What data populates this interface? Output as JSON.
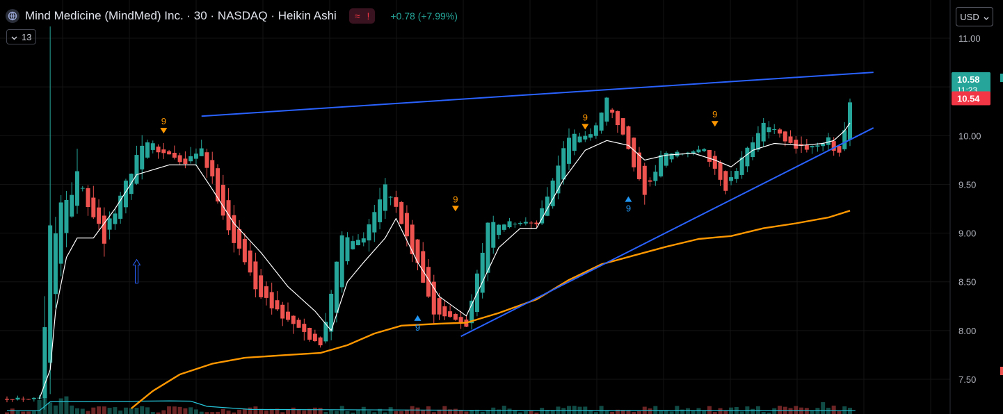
{
  "header": {
    "title": "Mind Medicine (MindMed) Inc. · 30 · NASDAQ · Heikin Ashi",
    "badge_wave": "≈",
    "badge_alert": "!",
    "change": "+0.78 (+7.99%)",
    "logo_icon": "globe-logo-icon"
  },
  "indicator_toggle": {
    "icon": "chevron-down-icon",
    "label": "13"
  },
  "currency": {
    "label": "USD",
    "icon": "chevron-down-icon"
  },
  "price_labels": {
    "last_price": "10.58",
    "countdown": "11:23",
    "ask_price": "10.54",
    "last_color": "#26a69a",
    "ask_color": "#f23645"
  },
  "chart_data": {
    "type": "candlestick",
    "style": "Heikin Ashi",
    "interval": "30",
    "y_axis": {
      "ticks": [
        "11.00",
        "10.50",
        "10.00",
        "9.50",
        "9.00",
        "8.50",
        "8.00",
        "7.50"
      ],
      "range": [
        7.28,
        11.2
      ],
      "position": "right"
    },
    "grid": true,
    "legend": "none",
    "colors": {
      "up": "#26a69a",
      "down": "#ef5350",
      "ma_fast": "#ffffff",
      "ma_slow": "#ff9800",
      "trendline": "#2962ff",
      "volume_ma": "#26c6da"
    },
    "segments": [
      {
        "from": 0,
        "to": 6,
        "start": 7.3,
        "end": 7.3,
        "noise": 0.04
      },
      {
        "from": 6,
        "to": 8,
        "start": 7.3,
        "end": 8.95,
        "noise": 0.5
      },
      {
        "from": 8,
        "to": 13,
        "start": 8.95,
        "end": 9.6,
        "noise": 0.35
      },
      {
        "from": 13,
        "to": 18,
        "start": 9.6,
        "end": 8.95,
        "noise": 0.3
      },
      {
        "from": 18,
        "to": 25,
        "start": 8.95,
        "end": 9.95,
        "noise": 0.2
      },
      {
        "from": 25,
        "to": 33,
        "start": 9.95,
        "end": 9.7,
        "noise": 0.12
      },
      {
        "from": 33,
        "to": 36,
        "start": 9.7,
        "end": 9.85,
        "noise": 0.15
      },
      {
        "from": 36,
        "to": 41,
        "start": 9.85,
        "end": 9.05,
        "noise": 0.2
      },
      {
        "from": 41,
        "to": 47,
        "start": 9.05,
        "end": 8.35,
        "noise": 0.15
      },
      {
        "from": 47,
        "to": 55,
        "start": 8.35,
        "end": 7.95,
        "noise": 0.15
      },
      {
        "from": 55,
        "to": 58,
        "start": 7.95,
        "end": 7.85,
        "noise": 0.08
      },
      {
        "from": 58,
        "to": 62,
        "start": 7.85,
        "end": 8.95,
        "noise": 0.15
      },
      {
        "from": 62,
        "to": 66,
        "start": 8.95,
        "end": 8.95,
        "noise": 0.12
      },
      {
        "from": 66,
        "to": 70,
        "start": 8.95,
        "end": 9.55,
        "noise": 0.2
      },
      {
        "from": 70,
        "to": 79,
        "start": 9.55,
        "end": 8.2,
        "noise": 0.15
      },
      {
        "from": 79,
        "to": 85,
        "start": 8.2,
        "end": 8.05,
        "noise": 0.1
      },
      {
        "from": 85,
        "to": 89,
        "start": 8.05,
        "end": 9.1,
        "noise": 0.15
      },
      {
        "from": 89,
        "to": 98,
        "start": 9.1,
        "end": 9.1,
        "noise": 0.1
      },
      {
        "from": 98,
        "to": 104,
        "start": 9.1,
        "end": 10.0,
        "noise": 0.15
      },
      {
        "from": 104,
        "to": 108,
        "start": 10.0,
        "end": 10.0,
        "noise": 0.1
      },
      {
        "from": 108,
        "to": 111,
        "start": 10.0,
        "end": 10.38,
        "noise": 0.12
      },
      {
        "from": 111,
        "to": 115,
        "start": 10.38,
        "end": 9.85,
        "noise": 0.15
      },
      {
        "from": 115,
        "to": 118,
        "start": 9.85,
        "end": 9.35,
        "noise": 0.15
      },
      {
        "from": 118,
        "to": 121,
        "start": 9.35,
        "end": 9.8,
        "noise": 0.1
      },
      {
        "from": 121,
        "to": 129,
        "start": 9.8,
        "end": 9.85,
        "noise": 0.06
      },
      {
        "from": 129,
        "to": 133,
        "start": 9.85,
        "end": 9.45,
        "noise": 0.1
      },
      {
        "from": 133,
        "to": 137,
        "start": 9.45,
        "end": 9.85,
        "noise": 0.1
      },
      {
        "from": 137,
        "to": 140,
        "start": 9.85,
        "end": 10.15,
        "noise": 0.12
      },
      {
        "from": 140,
        "to": 146,
        "start": 10.15,
        "end": 9.85,
        "noise": 0.1
      },
      {
        "from": 146,
        "to": 152,
        "start": 9.85,
        "end": 9.95,
        "noise": 0.12
      },
      {
        "from": 152,
        "to": 154,
        "start": 9.95,
        "end": 9.8,
        "noise": 0.1
      },
      {
        "from": 154,
        "to": 157,
        "start": 9.8,
        "end": 10.58,
        "noise": 0.12
      }
    ],
    "candle_count": 157,
    "ma_fast": [
      {
        "i": 6,
        "v": 7.3
      },
      {
        "i": 8,
        "v": 7.6
      },
      {
        "i": 9,
        "v": 8.2
      },
      {
        "i": 11,
        "v": 8.75
      },
      {
        "i": 13,
        "v": 8.95
      },
      {
        "i": 16,
        "v": 8.95
      },
      {
        "i": 20,
        "v": 9.25
      },
      {
        "i": 24,
        "v": 9.6
      },
      {
        "i": 30,
        "v": 9.7
      },
      {
        "i": 35,
        "v": 9.7
      },
      {
        "i": 38,
        "v": 9.45
      },
      {
        "i": 42,
        "v": 9.1
      },
      {
        "i": 47,
        "v": 8.8
      },
      {
        "i": 52,
        "v": 8.45
      },
      {
        "i": 57,
        "v": 8.2
      },
      {
        "i": 60,
        "v": 8.0
      },
      {
        "i": 63,
        "v": 8.5
      },
      {
        "i": 66,
        "v": 8.7
      },
      {
        "i": 70,
        "v": 8.95
      },
      {
        "i": 72,
        "v": 9.15
      },
      {
        "i": 76,
        "v": 8.7
      },
      {
        "i": 80,
        "v": 8.35
      },
      {
        "i": 85,
        "v": 8.15
      },
      {
        "i": 88,
        "v": 8.5
      },
      {
        "i": 91,
        "v": 8.85
      },
      {
        "i": 95,
        "v": 9.05
      },
      {
        "i": 98,
        "v": 9.05
      },
      {
        "i": 103,
        "v": 9.55
      },
      {
        "i": 107,
        "v": 9.85
      },
      {
        "i": 111,
        "v": 9.95
      },
      {
        "i": 115,
        "v": 9.9
      },
      {
        "i": 118,
        "v": 9.75
      },
      {
        "i": 122,
        "v": 9.8
      },
      {
        "i": 127,
        "v": 9.82
      },
      {
        "i": 131,
        "v": 9.75
      },
      {
        "i": 134,
        "v": 9.68
      },
      {
        "i": 138,
        "v": 9.85
      },
      {
        "i": 142,
        "v": 9.92
      },
      {
        "i": 147,
        "v": 9.9
      },
      {
        "i": 151,
        "v": 9.92
      },
      {
        "i": 153,
        "v": 9.95
      },
      {
        "i": 155,
        "v": 10.05
      },
      {
        "i": 156,
        "v": 10.13
      }
    ],
    "ma_slow": [
      {
        "i": 23,
        "v": 7.2
      },
      {
        "i": 27,
        "v": 7.38
      },
      {
        "i": 32,
        "v": 7.55
      },
      {
        "i": 38,
        "v": 7.66
      },
      {
        "i": 44,
        "v": 7.72
      },
      {
        "i": 52,
        "v": 7.75
      },
      {
        "i": 58,
        "v": 7.77
      },
      {
        "i": 63,
        "v": 7.85
      },
      {
        "i": 68,
        "v": 7.97
      },
      {
        "i": 73,
        "v": 8.05
      },
      {
        "i": 80,
        "v": 8.07
      },
      {
        "i": 85,
        "v": 8.08
      },
      {
        "i": 91,
        "v": 8.18
      },
      {
        "i": 98,
        "v": 8.32
      },
      {
        "i": 104,
        "v": 8.52
      },
      {
        "i": 110,
        "v": 8.68
      },
      {
        "i": 116,
        "v": 8.77
      },
      {
        "i": 122,
        "v": 8.86
      },
      {
        "i": 128,
        "v": 8.94
      },
      {
        "i": 134,
        "v": 8.97
      },
      {
        "i": 140,
        "v": 9.05
      },
      {
        "i": 146,
        "v": 9.1
      },
      {
        "i": 152,
        "v": 9.16
      },
      {
        "i": 156,
        "v": 9.23
      }
    ],
    "trendlines": [
      {
        "from": {
          "i": 36,
          "v": 10.2
        },
        "to": {
          "i": 157,
          "v": 10.65
        }
      },
      {
        "from": {
          "i": 84,
          "v": 7.94
        },
        "to": {
          "i": 157,
          "v": 10.08
        }
      }
    ],
    "markers": [
      {
        "i": 29,
        "type": "sell",
        "label": "9",
        "v": 10.08
      },
      {
        "i": 83,
        "type": "sell",
        "label": "9",
        "v": 9.28
      },
      {
        "i": 107,
        "type": "sell",
        "label": "9",
        "v": 10.12
      },
      {
        "i": 131,
        "type": "sell",
        "label": "9",
        "v": 10.15
      },
      {
        "i": 76,
        "type": "buy",
        "label": "9",
        "v": 8.1
      },
      {
        "i": 115,
        "type": "buy",
        "label": "9",
        "v": 9.32
      }
    ],
    "hollow_arrow": {
      "i": 24,
      "v": 8.7
    },
    "volume_ma": [
      {
        "i": 0,
        "v": 0.22
      },
      {
        "i": 6,
        "v": 0.22
      },
      {
        "i": 8,
        "v": 0.8
      },
      {
        "i": 18,
        "v": 0.82
      },
      {
        "i": 30,
        "v": 0.86
      },
      {
        "i": 34,
        "v": 0.84
      },
      {
        "i": 37,
        "v": 0.5
      },
      {
        "i": 45,
        "v": 0.3
      },
      {
        "i": 60,
        "v": 0.28
      },
      {
        "i": 90,
        "v": 0.24
      },
      {
        "i": 120,
        "v": 0.23
      },
      {
        "i": 157,
        "v": 0.22
      }
    ]
  }
}
